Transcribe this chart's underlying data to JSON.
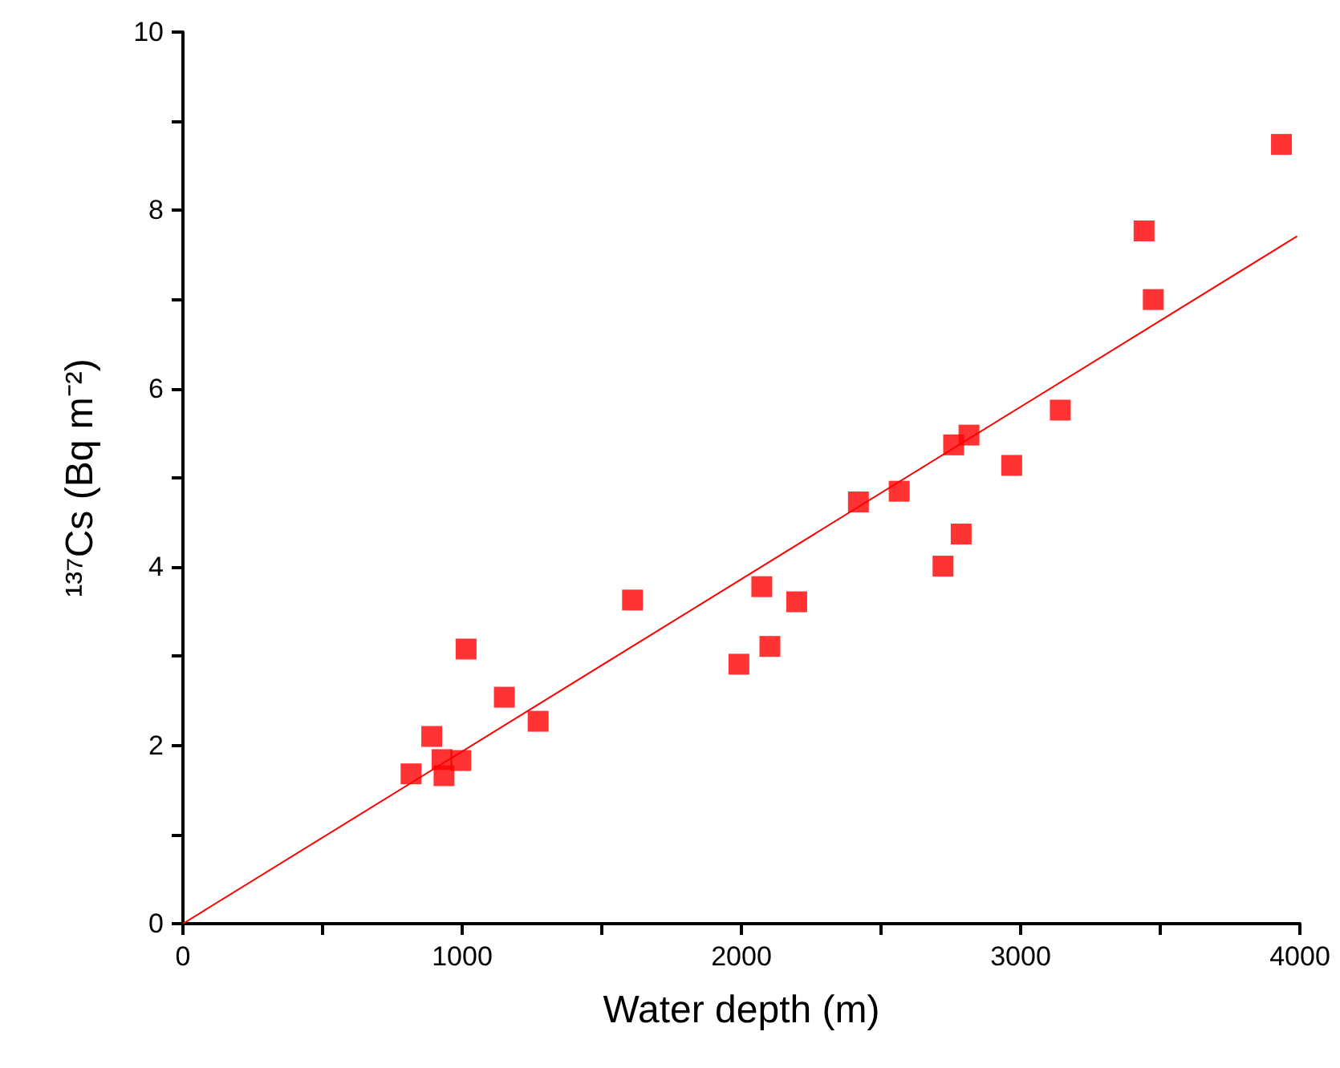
{
  "chart_data": {
    "type": "scatter",
    "xlabel": "Water depth (m)",
    "ylabel": "¹³⁷Cs (Bq m⁻²)",
    "marker": "square",
    "grid": false,
    "xlim": [
      0,
      4000
    ],
    "ylim": [
      0,
      10
    ],
    "xticks": [
      0,
      {
        "value": 500,
        "label": null
      },
      1000,
      {
        "value": 1500,
        "label": null
      },
      2000,
      {
        "value": 2500,
        "label": null
      },
      3000,
      {
        "value": 3500,
        "label": null
      },
      4000
    ],
    "yticks": [
      0,
      {
        "value": 1,
        "label": null
      },
      2,
      {
        "value": 3,
        "label": null
      },
      4,
      {
        "value": 5,
        "label": null
      },
      6,
      {
        "value": 7,
        "label": null
      },
      8,
      {
        "value": 9,
        "label": null
      },
      10
    ],
    "series": [
      {
        "color": "#ff0000",
        "x": [
          817,
          891,
          928,
          935,
          995,
          1014,
          1151,
          1272,
          1610,
          1991,
          2102,
          2073,
          2198,
          2419,
          2565,
          2722,
          2787,
          2968,
          2760,
          2815,
          3142,
          3442,
          3475,
          3934
        ],
        "values": [
          1.68,
          2.1,
          1.84,
          1.66,
          1.83,
          3.08,
          2.54,
          2.27,
          3.63,
          2.91,
          3.11,
          3.78,
          3.61,
          4.73,
          4.85,
          4.01,
          4.37,
          5.14,
          5.37,
          5.48,
          5.76,
          7.77,
          7.0,
          8.74
        ]
      },
      {
        "type": "line",
        "color": "#ff0000",
        "marker": "none",
        "line_style": "solid",
        "x": [
          0,
          3990
        ],
        "values": [
          0,
          7.71
        ]
      }
    ]
  }
}
